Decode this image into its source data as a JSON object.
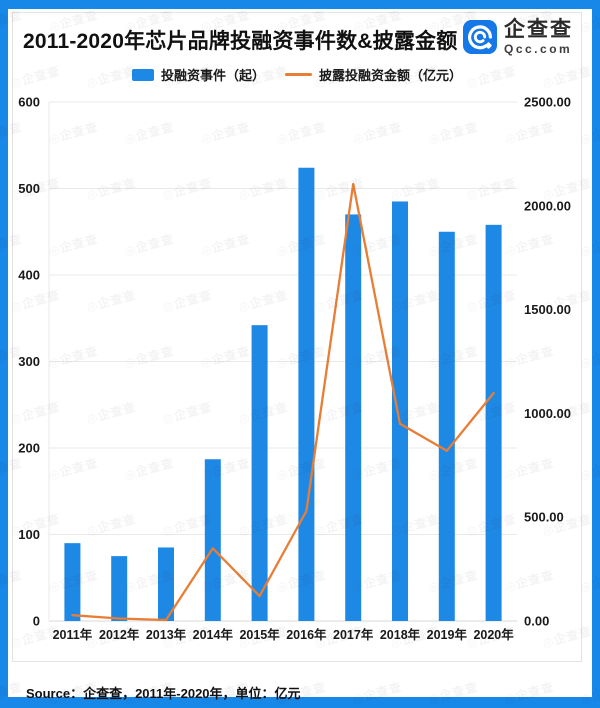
{
  "page": {
    "title": "2011-2020年芯片品牌投融资事件数&披露金额",
    "source_note": "Source：企查查，2011年-2020年，单位：亿元",
    "watermark_text": "◎企查查"
  },
  "logo": {
    "name": "企查查",
    "domain": "Qcc.com",
    "icon": "qcc-circle-q-icon"
  },
  "colors": {
    "frame_blue": "#1787e8",
    "bar_blue": "#1e88e5",
    "line_orange": "#e87e35",
    "grid_line": "#e9e9e9",
    "axis_bottom_line": "#d8d8d8",
    "text_dark": "#1a1a1a",
    "logo_blue": "#1678e6"
  },
  "chart_data": {
    "type": "bar",
    "subtype": "bar+line dual axis",
    "title": "2011-2020年芯片品牌投融资事件数&披露金额",
    "categories": [
      "2011年",
      "2012年",
      "2013年",
      "2014年",
      "2015年",
      "2016年",
      "2017年",
      "2018年",
      "2019年",
      "2020年"
    ],
    "series": [
      {
        "name": "投融资事件（起）",
        "type": "bar",
        "axis": "left",
        "color": "#1e88e5",
        "values": [
          90,
          75,
          85,
          187,
          342,
          524,
          470,
          485,
          450,
          458
        ]
      },
      {
        "name": "披露投融资金额（亿元）",
        "type": "line",
        "axis": "right",
        "color": "#e87e35",
        "values": [
          28,
          12,
          5,
          350,
          120,
          530,
          2105,
          950,
          820,
          1098
        ]
      }
    ],
    "left_axis": {
      "min": 0,
      "max": 600,
      "step": 100,
      "ticks": [
        "600",
        "500",
        "400",
        "300",
        "200",
        "100",
        "0"
      ]
    },
    "right_axis": {
      "min": 0,
      "max": 2500,
      "step": 500,
      "ticks": [
        "2500.00",
        "2000.00",
        "1500.00",
        "1000.00",
        "500.00",
        "0.00"
      ]
    },
    "grid": true,
    "legend_position": "top"
  }
}
